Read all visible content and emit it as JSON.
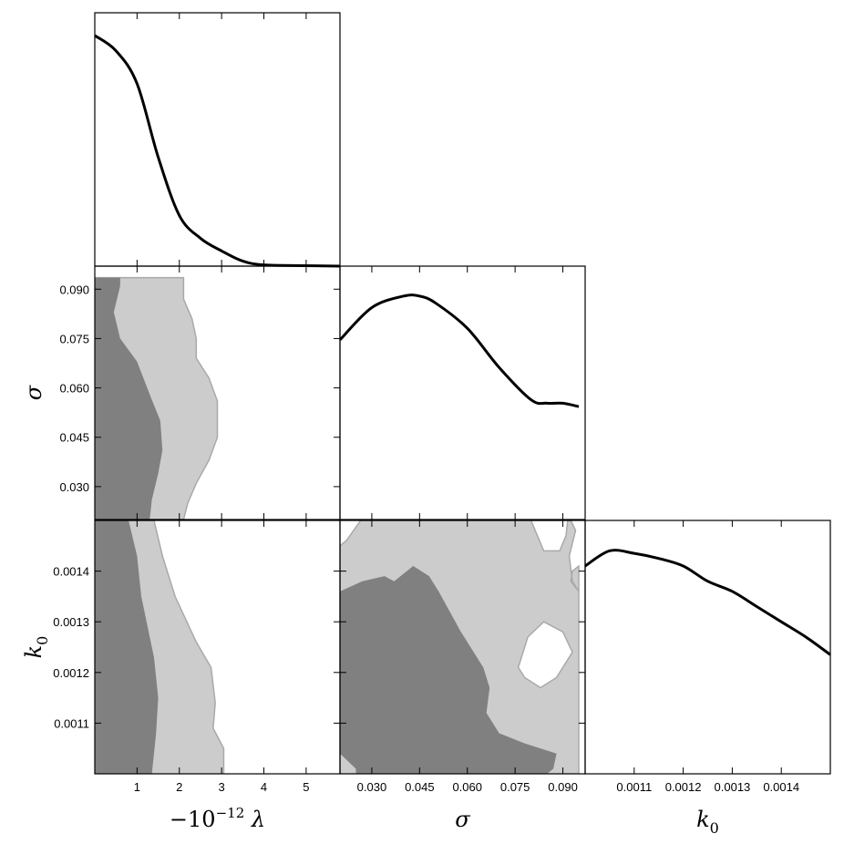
{
  "chart_data": {
    "type": "corner",
    "colors": {
      "contour_inner": "#808080",
      "contour_outer": "#cccccc",
      "contour_edge": "#a9a9a9",
      "curve": "#000000",
      "frame": "#000000"
    },
    "parameters": [
      {
        "key": "lambda",
        "axis_label": "−10",
        "axis_label_sup": "−12",
        "axis_label_after": " λ",
        "range": [
          0,
          5.8
        ],
        "tick_values": [
          1,
          2,
          3,
          4,
          5
        ],
        "tick_labels": [
          "1",
          "2",
          "3",
          "4",
          "5"
        ]
      },
      {
        "key": "sigma",
        "axis_label": "σ",
        "range": [
          0.02,
          0.097
        ],
        "tick_values": [
          0.03,
          0.045,
          0.06,
          0.075,
          0.09
        ],
        "tick_labels": [
          "0.030",
          "0.045",
          "0.060",
          "0.075",
          "0.090"
        ]
      },
      {
        "key": "k0",
        "axis_label": "k",
        "axis_label_sub": "0",
        "range": [
          0.001,
          0.0015
        ],
        "tick_values": [
          0.0011,
          0.0012,
          0.0013,
          0.0014
        ],
        "tick_labels": [
          "0.0011",
          "0.0012",
          "0.0013",
          "0.0014"
        ]
      }
    ],
    "marginals": [
      {
        "param": "lambda",
        "x": [
          0.0,
          0.5,
          1.0,
          1.5,
          2.0,
          2.5,
          3.0,
          3.5,
          4.0,
          5.0,
          5.8
        ],
        "density": [
          0.91,
          0.85,
          0.72,
          0.43,
          0.2,
          0.11,
          0.06,
          0.02,
          0.005,
          0.002,
          0.0
        ],
        "density_range": [
          0,
          1.0
        ]
      },
      {
        "param": "sigma",
        "x": [
          0.02,
          0.03,
          0.04,
          0.045,
          0.05,
          0.06,
          0.07,
          0.08,
          0.085,
          0.09,
          0.095
        ],
        "density": [
          0.78,
          0.92,
          0.97,
          0.97,
          0.94,
          0.83,
          0.66,
          0.52,
          0.505,
          0.505,
          0.49
        ],
        "density_range": [
          0,
          1.1
        ]
      },
      {
        "param": "k0",
        "x": [
          0.001,
          0.00105,
          0.0011,
          0.00115,
          0.0012,
          0.00125,
          0.0013,
          0.00135,
          0.0014,
          0.00145,
          0.0015
        ],
        "density": [
          0.82,
          0.88,
          0.87,
          0.85,
          0.82,
          0.76,
          0.72,
          0.66,
          0.6,
          0.54,
          0.47
        ],
        "density_range": [
          0,
          1.0
        ]
      }
    ],
    "joint": [
      {
        "params": [
          "lambda",
          "sigma"
        ],
        "outer": [
          [
            0,
            0.0935
          ],
          [
            2.1,
            0.0935
          ],
          [
            2.1,
            0.087
          ],
          [
            2.3,
            0.081
          ],
          [
            2.4,
            0.075
          ],
          [
            2.4,
            0.069
          ],
          [
            2.7,
            0.063
          ],
          [
            2.9,
            0.056
          ],
          [
            2.9,
            0.045
          ],
          [
            2.7,
            0.038
          ],
          [
            2.4,
            0.031
          ],
          [
            2.2,
            0.025
          ],
          [
            2.1,
            0.02
          ],
          [
            0,
            0.02
          ]
        ],
        "inner": [
          [
            0,
            0.0935
          ],
          [
            0.6,
            0.0935
          ],
          [
            0.6,
            0.091
          ],
          [
            0.45,
            0.083
          ],
          [
            0.6,
            0.075
          ],
          [
            1.0,
            0.068
          ],
          [
            1.3,
            0.058
          ],
          [
            1.55,
            0.05
          ],
          [
            1.6,
            0.041
          ],
          [
            1.5,
            0.034
          ],
          [
            1.35,
            0.026
          ],
          [
            1.3,
            0.02
          ],
          [
            0,
            0.02
          ]
        ]
      },
      {
        "params": [
          "lambda",
          "k0"
        ],
        "outer": [
          [
            0,
            0.0015
          ],
          [
            1.4,
            0.0015
          ],
          [
            1.6,
            0.00143
          ],
          [
            1.9,
            0.00135
          ],
          [
            2.4,
            0.00126
          ],
          [
            2.75,
            0.00121
          ],
          [
            2.85,
            0.00114
          ],
          [
            2.8,
            0.00109
          ],
          [
            3.05,
            0.00105
          ],
          [
            3.05,
            0.001
          ],
          [
            0,
            0.001
          ]
        ],
        "inner": [
          [
            0,
            0.0015
          ],
          [
            0.8,
            0.0015
          ],
          [
            1.0,
            0.00143
          ],
          [
            1.1,
            0.00135
          ],
          [
            1.4,
            0.00123
          ],
          [
            1.5,
            0.00115
          ],
          [
            1.45,
            0.00108
          ],
          [
            1.35,
            0.001
          ],
          [
            0,
            0.001
          ]
        ]
      },
      {
        "params": [
          "sigma",
          "k0"
        ],
        "outer": [
          [
            0.02,
            0.001
          ],
          [
            0.095,
            0.001
          ],
          [
            0.095,
            0.00136
          ],
          [
            0.093,
            0.00138
          ],
          [
            0.092,
            0.00143
          ],
          [
            0.094,
            0.00148
          ],
          [
            0.0925,
            0.0015
          ],
          [
            0.0265,
            0.0015
          ],
          [
            0.022,
            0.00146
          ],
          [
            0.02,
            0.00145
          ]
        ],
        "inner": [
          [
            0.02,
            0.00136
          ],
          [
            0.027,
            0.00138
          ],
          [
            0.034,
            0.00139
          ],
          [
            0.037,
            0.00138
          ],
          [
            0.043,
            0.00141
          ],
          [
            0.048,
            0.00139
          ],
          [
            0.051,
            0.00136
          ],
          [
            0.058,
            0.00128
          ],
          [
            0.065,
            0.00121
          ],
          [
            0.067,
            0.00117
          ],
          [
            0.066,
            0.00112
          ],
          [
            0.07,
            0.00108
          ],
          [
            0.078,
            0.00106
          ],
          [
            0.088,
            0.00104
          ],
          [
            0.087,
            0.00101
          ],
          [
            0.085,
            0.001
          ],
          [
            0.025,
            0.001
          ],
          [
            0.025,
            0.00101
          ],
          [
            0.02,
            0.00104
          ]
        ],
        "holes": [
          [
            [
              0.08,
              0.0015
            ],
            [
              0.084,
              0.00144
            ],
            [
              0.089,
              0.00144
            ],
            [
              0.091,
              0.00147
            ],
            [
              0.0915,
              0.0015
            ]
          ],
          [
            [
              0.095,
              0.00141
            ],
            [
              0.093,
              0.0014
            ],
            [
              0.0925,
              0.00138
            ],
            [
              0.095,
              0.00136
            ]
          ],
          [
            [
              0.076,
              0.00121
            ],
            [
              0.078,
              0.00119
            ],
            [
              0.083,
              0.00117
            ],
            [
              0.088,
              0.00119
            ],
            [
              0.093,
              0.00124
            ],
            [
              0.09,
              0.00128
            ],
            [
              0.084,
              0.0013
            ],
            [
              0.079,
              0.00127
            ]
          ]
        ]
      }
    ]
  }
}
